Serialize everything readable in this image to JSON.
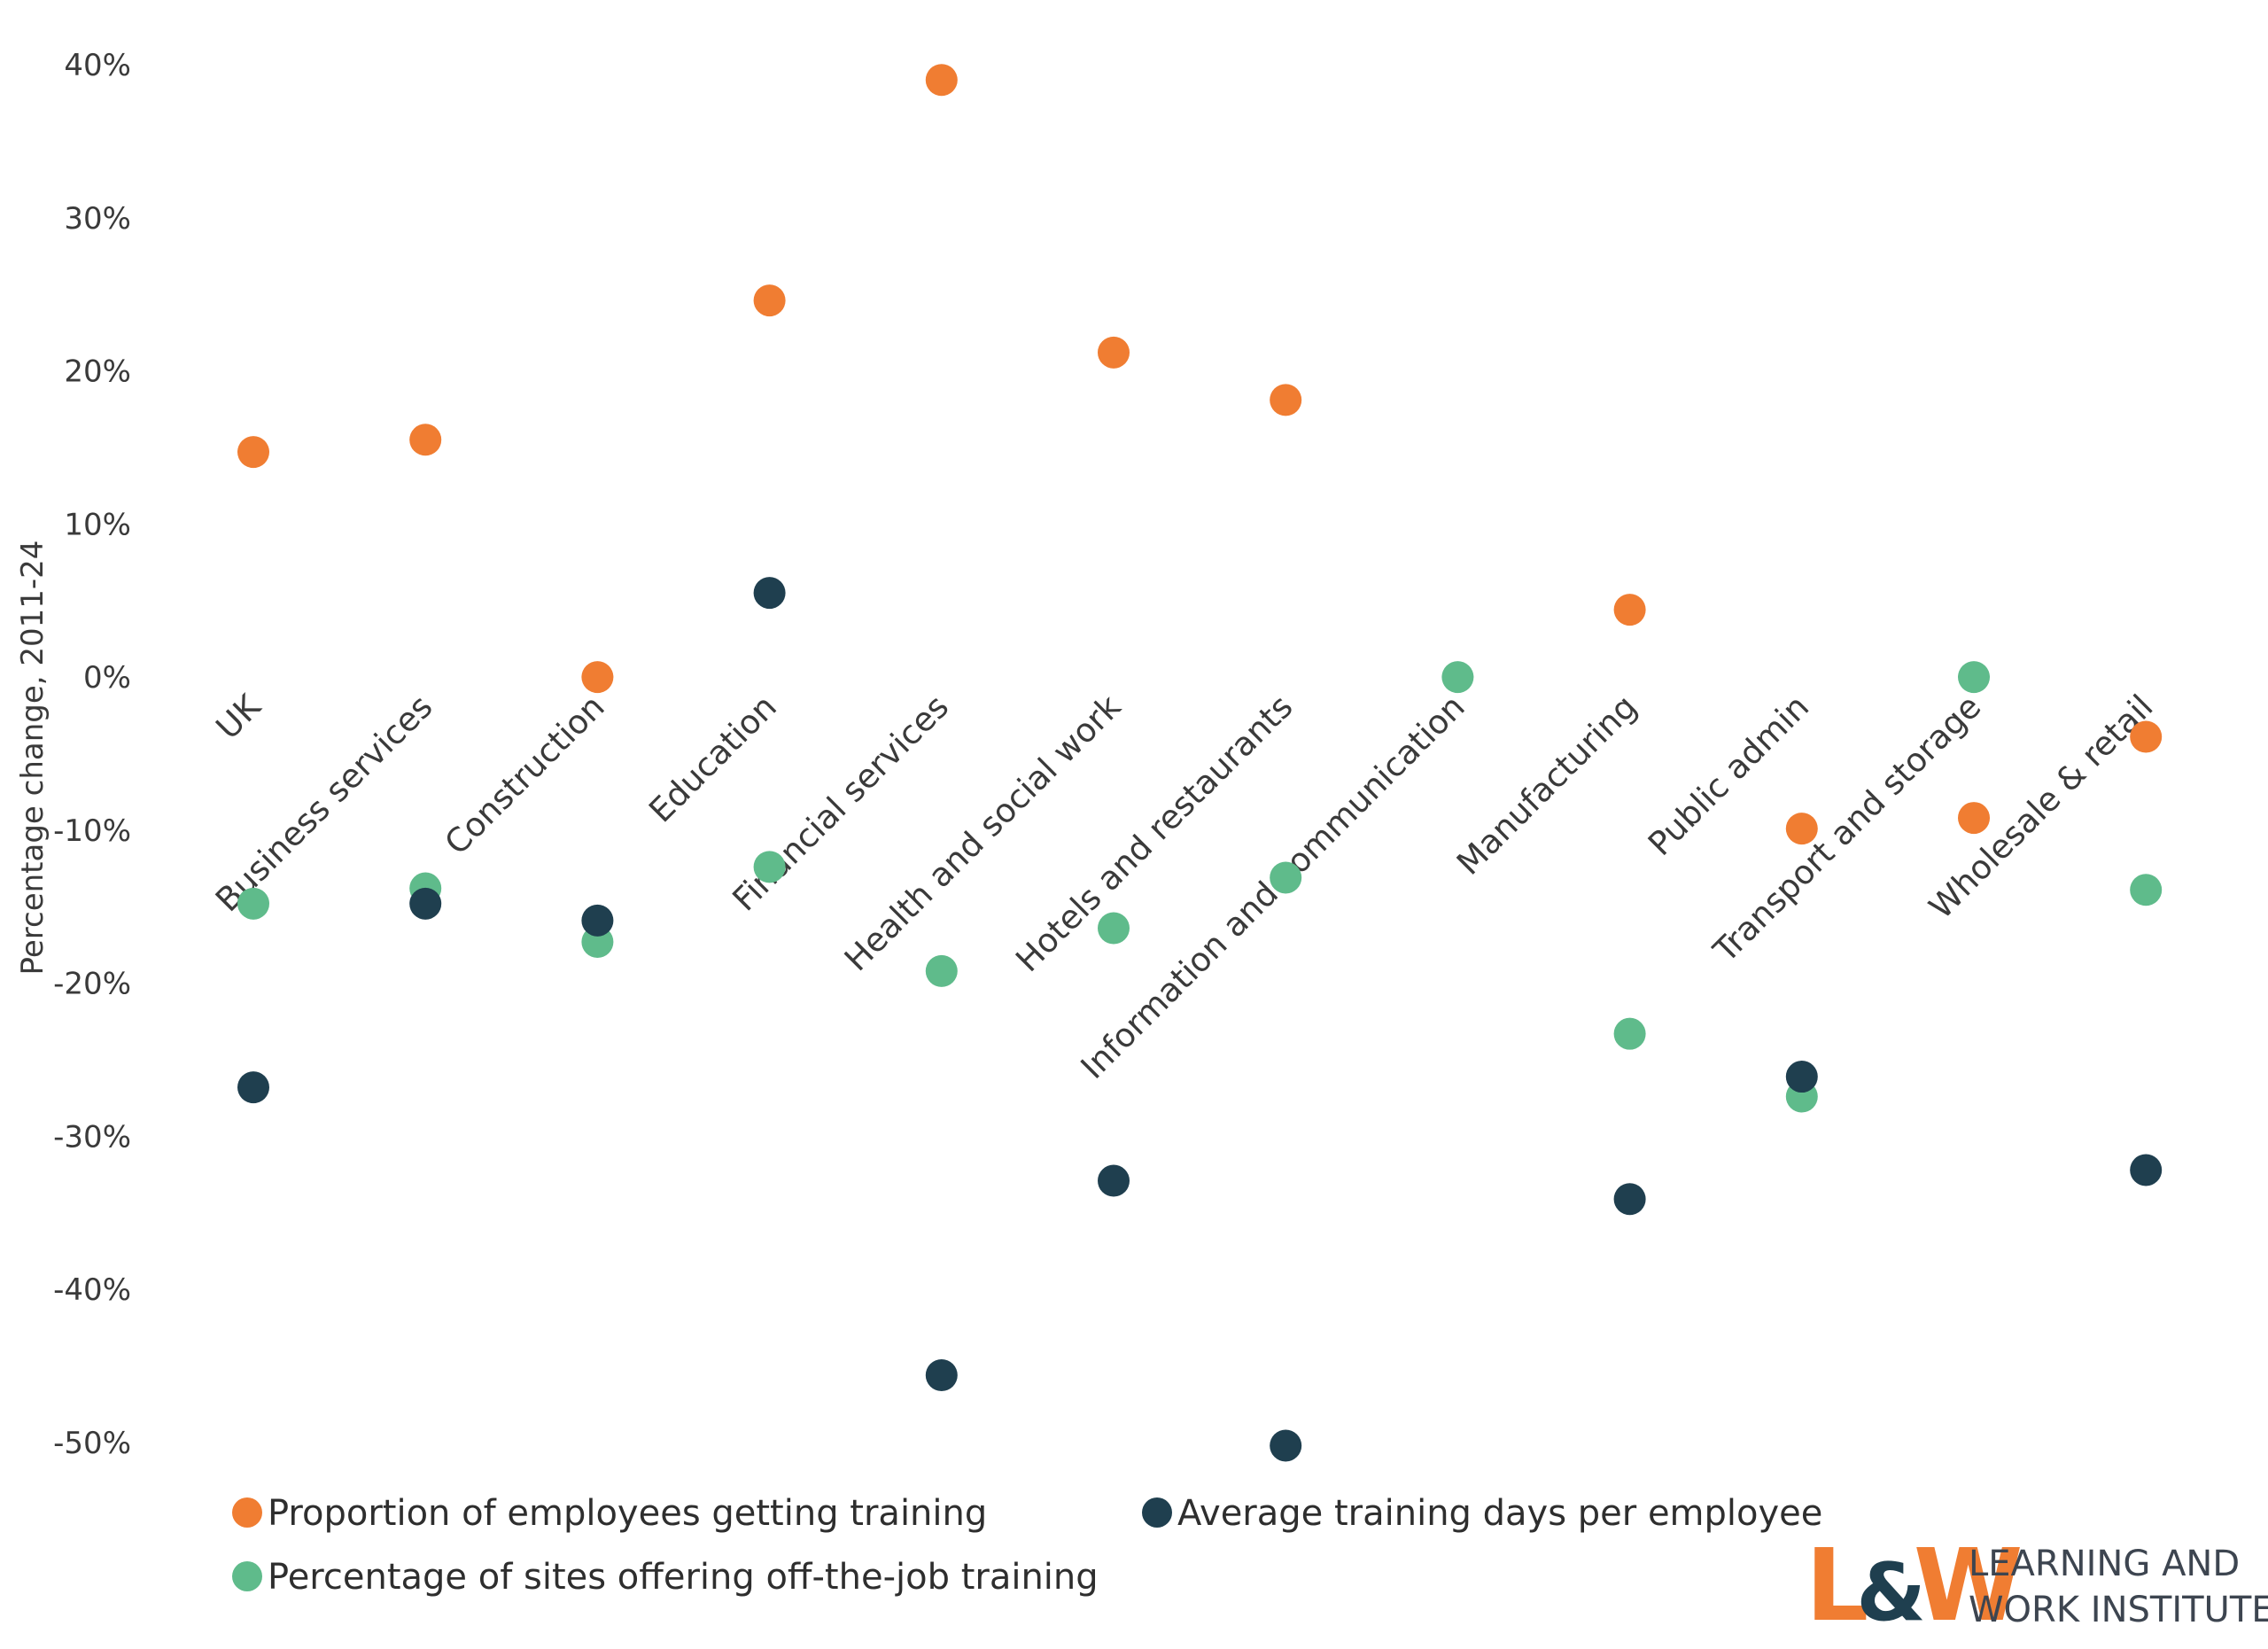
{
  "chart_data": {
    "type": "scatter",
    "categories": [
      "UK",
      "Business services",
      "Construction",
      "Education",
      "Financial services",
      "Health and social work",
      "Hotels and restaurants",
      "Information and communication",
      "Manufacturing",
      "Public admin",
      "Transport and storage",
      "Wholesale & retail"
    ],
    "ylabel": "Percentage change, 2011-24",
    "ylim": [
      -50,
      40
    ],
    "yticks": [
      40,
      30,
      20,
      10,
      0,
      -10,
      -20,
      -30,
      -40,
      -50
    ],
    "ytick_labels": [
      "40%",
      "30%",
      "20%",
      "10%",
      "0%",
      "-10%",
      "-20%",
      "-30%",
      "-40%",
      "-50%"
    ],
    "grid": false,
    "legend_position": "bottom",
    "series": [
      {
        "name": "Proportion of employees getting training",
        "color": "#F07D32",
        "values": [
          14.7,
          15.5,
          0.0,
          24.6,
          39.0,
          21.2,
          18.1,
          null,
          4.4,
          -9.9,
          -9.2,
          -3.9
        ]
      },
      {
        "name": "Average training days per employee",
        "color": "#1F3F4F",
        "values": [
          -26.8,
          -14.8,
          -15.9,
          5.5,
          -45.6,
          -32.9,
          -50.2,
          null,
          -34.1,
          -26.1,
          null,
          -32.2
        ]
      },
      {
        "name": "Percentage of sites offering off-the-job training",
        "color": "#5FBB8B",
        "values": [
          -14.8,
          -13.8,
          -17.3,
          -12.4,
          -19.2,
          -16.4,
          -13.1,
          0.0,
          -23.3,
          -27.4,
          0.0,
          -13.9
        ]
      }
    ]
  },
  "logo": {
    "mark": "L&W",
    "line1": "LEARNING AND",
    "line2": "WORK INSTITUTE"
  }
}
